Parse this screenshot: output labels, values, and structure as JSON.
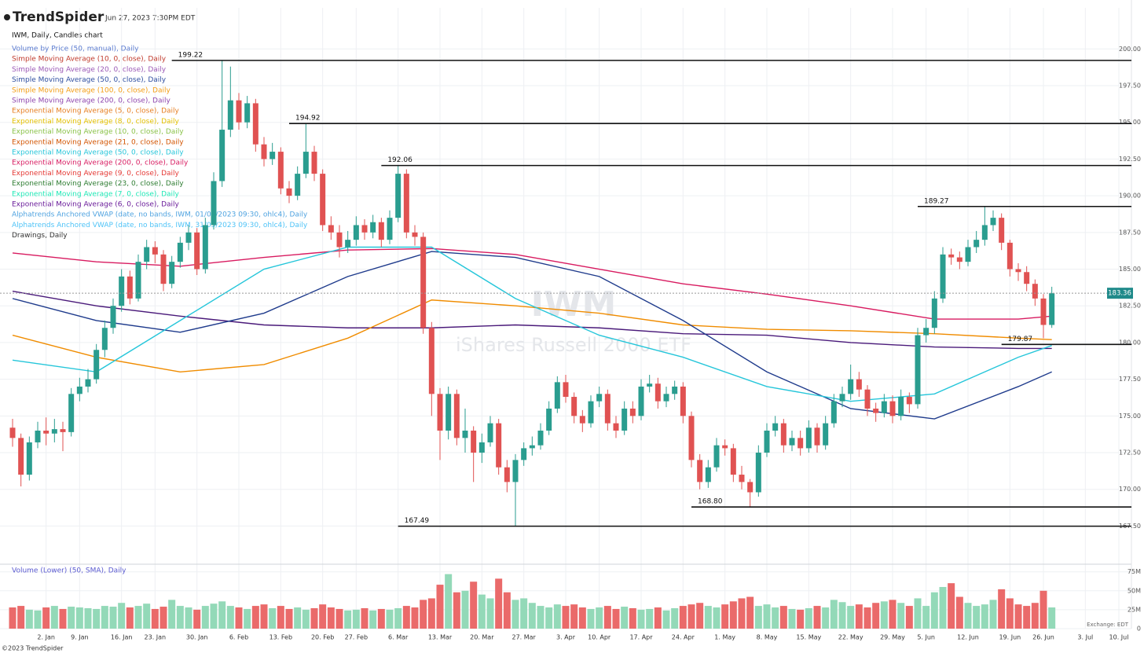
{
  "header": {
    "brand": "TrendSpider",
    "timestamp": "Jun 27, 2023 7:30PM EDT",
    "symbol_line": "IWM, Daily, Candles chart"
  },
  "legend": [
    {
      "label": "Volume by Price (50, manual), Daily",
      "color": "#5a7bd0"
    },
    {
      "label": "Simple Moving Average (10, 0, close), Daily",
      "color": "#c0392b"
    },
    {
      "label": "Simple Moving Average (20, 0, close), Daily",
      "color": "#9b59b6"
    },
    {
      "label": "Simple Moving Average (50, 0, close), Daily",
      "color": "#2e4ea0"
    },
    {
      "label": "Simple Moving Average (100, 0, close), Daily",
      "color": "#f39c12"
    },
    {
      "label": "Simple Moving Average (200, 0, close), Daily",
      "color": "#8e44ad"
    },
    {
      "label": "Exponential Moving Average (5, 0, close), Daily",
      "color": "#e67e22"
    },
    {
      "label": "Exponential Moving Average (8, 0, close), Daily",
      "color": "#e5c100"
    },
    {
      "label": "Exponential Moving Average (10, 0, close), Daily",
      "color": "#8bc34a"
    },
    {
      "label": "Exponential Moving Average (21, 0, close), Daily",
      "color": "#d35400"
    },
    {
      "label": "Exponential Moving Average (50, 0, close), Daily",
      "color": "#26c6da"
    },
    {
      "label": "Exponential Moving Average (200, 0, close), Daily",
      "color": "#d81b60"
    },
    {
      "label": "Exponential Moving Average (9, 0, close), Daily",
      "color": "#e53935"
    },
    {
      "label": "Exponential Moving Average (23, 0, close), Daily",
      "color": "#2e7d32"
    },
    {
      "label": "Exponential Moving Average (7, 0, close), Daily",
      "color": "#1de9b6"
    },
    {
      "label": "Exponential Moving Average (6, 0, close), Daily",
      "color": "#6a1b9a"
    },
    {
      "label": "Alphatrends Anchored VWAP (date, no bands, IWM, 01/06/2023 09:30, ohlc4), Daily",
      "color": "#4fa3e0"
    },
    {
      "label": "Alphatrends Anchored VWAP (date, no bands, IWM, 31/05/2023 09:30, ohlc4), Daily",
      "color": "#4fc3f7"
    },
    {
      "label": "Drawings, Daily",
      "color": "#333333"
    }
  ],
  "watermark": {
    "symbol": "IWM",
    "name": "iShares Russell 2000 ETF"
  },
  "footer": {
    "copyright": "©2023 TrendSpider",
    "exchange": "Exchange: EDT"
  },
  "chart_data": {
    "type": "candlestick",
    "xlim": [
      -1.5,
      133.5
    ],
    "xticks": [
      {
        "value": 4,
        "label": "2. Jan"
      },
      {
        "value": 8,
        "label": "9. Jan"
      },
      {
        "value": 13,
        "label": "16. Jan"
      },
      {
        "value": 17,
        "label": "23. Jan"
      },
      {
        "value": 22,
        "label": "30. Jan"
      },
      {
        "value": 27,
        "label": "6. Feb"
      },
      {
        "value": 32,
        "label": "13. Feb"
      },
      {
        "value": 37,
        "label": "20. Feb"
      },
      {
        "value": 41,
        "label": "27. Feb"
      },
      {
        "value": 46,
        "label": "6. Mar"
      },
      {
        "value": 51,
        "label": "13. Mar"
      },
      {
        "value": 56,
        "label": "20. Mar"
      },
      {
        "value": 61,
        "label": "27. Mar"
      },
      {
        "value": 66,
        "label": "3. Apr"
      },
      {
        "value": 70,
        "label": "10. Apr"
      },
      {
        "value": 75,
        "label": "17. Apr"
      },
      {
        "value": 80,
        "label": "24. Apr"
      },
      {
        "value": 85,
        "label": "1. May"
      },
      {
        "value": 90,
        "label": "8. May"
      },
      {
        "value": 95,
        "label": "15. May"
      },
      {
        "value": 100,
        "label": "22. May"
      },
      {
        "value": 105,
        "label": "29. May"
      },
      {
        "value": 109,
        "label": "5. Jun"
      },
      {
        "value": 114,
        "label": "12. Jun"
      },
      {
        "value": 119,
        "label": "19. Jun"
      },
      {
        "value": 123,
        "label": "26. Jun"
      },
      {
        "value": 128,
        "label": "3. Jul"
      },
      {
        "value": 132,
        "label": "10. Jul"
      }
    ],
    "ylim": [
      164.9,
      202.8
    ],
    "yticks": [
      {
        "value": 167.5,
        "label": "167.50"
      },
      {
        "value": 170,
        "label": "170.00"
      },
      {
        "value": 172.5,
        "label": "172.50"
      },
      {
        "value": 175,
        "label": "175.00"
      },
      {
        "value": 177.5,
        "label": "177.50"
      },
      {
        "value": 180,
        "label": "180.00"
      },
      {
        "value": 182.5,
        "label": "182.50"
      },
      {
        "value": 185,
        "label": "185.00"
      },
      {
        "value": 187.5,
        "label": "187.50"
      },
      {
        "value": 190,
        "label": "190.00"
      },
      {
        "value": 192.5,
        "label": "192.50"
      },
      {
        "value": 195,
        "label": "195.00"
      },
      {
        "value": 197.5,
        "label": "197.50"
      },
      {
        "value": 200,
        "label": "200.00"
      }
    ],
    "up_color": "#2a9d8f",
    "down_color": "#e05252",
    "grid": true,
    "candles": {
      "open": [
        174.2,
        173.5,
        171.0,
        173.2,
        174.0,
        173.8,
        174.1,
        173.9,
        176.5,
        177.0,
        177.5,
        179.5,
        181.0,
        182.5,
        184.5,
        183.0,
        185.5,
        186.5,
        186.0,
        184.0,
        185.5,
        186.8,
        187.5,
        185.0,
        188.0,
        191.0,
        194.5,
        196.5,
        195.0,
        196.3,
        193.5,
        192.5,
        193.0,
        190.5,
        190.0,
        191.5,
        193.0,
        191.5,
        188.0,
        187.5,
        186.5,
        187.0,
        188.0,
        187.5,
        188.2,
        187.0,
        188.5,
        191.5,
        187.5,
        187.2,
        181.0,
        176.5,
        174.0,
        176.5,
        173.5,
        174.0,
        172.5,
        173.2,
        174.5,
        171.5,
        170.5,
        172.0,
        172.8,
        173.0,
        174.0,
        175.5,
        177.3,
        176.3,
        175.0,
        174.5,
        176.0,
        176.5,
        174.5,
        174.0,
        175.5,
        175.0,
        177.0,
        177.2,
        176.0,
        176.5,
        177.0,
        175.0,
        172.0,
        170.5,
        171.5,
        173.0,
        172.8,
        171.0,
        170.5,
        169.8,
        172.5,
        174.0,
        174.5,
        173.0,
        173.5,
        172.8,
        174.2,
        173.0,
        174.5,
        176.0,
        176.5,
        177.5,
        176.8,
        175.5,
        175.2,
        176.0,
        175.0,
        176.3,
        175.8,
        180.5,
        181.0,
        183.0,
        186.0,
        185.8,
        185.5,
        186.5,
        187.0,
        188.0,
        188.5,
        186.8,
        185.0,
        184.8,
        184.0,
        183.0,
        181.2
      ],
      "high": [
        174.8,
        173.8,
        173.6,
        174.6,
        174.9,
        174.8,
        174.6,
        176.9,
        177.6,
        178.2,
        179.9,
        181.5,
        183.0,
        185.0,
        184.9,
        186.0,
        187.0,
        186.9,
        186.3,
        185.9,
        187.2,
        188.0,
        187.8,
        188.5,
        191.6,
        199.22,
        198.8,
        197.0,
        196.8,
        196.6,
        194.0,
        193.6,
        193.3,
        191.0,
        192.0,
        194.92,
        193.4,
        191.8,
        188.6,
        188.0,
        187.6,
        188.6,
        188.4,
        188.7,
        188.5,
        189.0,
        192.06,
        191.8,
        188.0,
        187.5,
        181.4,
        176.9,
        177.0,
        176.8,
        175.5,
        174.3,
        173.8,
        175.0,
        174.8,
        172.0,
        172.4,
        173.2,
        173.6,
        174.5,
        176.0,
        177.7,
        177.8,
        176.6,
        175.4,
        176.4,
        177.0,
        176.8,
        175.0,
        176.0,
        176.0,
        177.5,
        177.8,
        177.6,
        177.0,
        177.4,
        177.3,
        175.3,
        172.4,
        172.0,
        173.5,
        173.4,
        173.1,
        171.6,
        170.7,
        173.0,
        174.5,
        175.0,
        174.8,
        174.0,
        174.0,
        174.7,
        174.5,
        175.0,
        176.5,
        177.0,
        178.5,
        178.0,
        177.1,
        175.9,
        176.5,
        176.4,
        176.8,
        176.6,
        181.0,
        181.6,
        183.5,
        186.5,
        186.4,
        186.2,
        187.0,
        187.6,
        189.27,
        189.0,
        188.8,
        187.0,
        185.4,
        185.2,
        184.3,
        183.3,
        183.8
      ],
      "low": [
        172.9,
        170.2,
        170.6,
        172.8,
        173.0,
        173.2,
        172.6,
        173.6,
        176.0,
        176.6,
        177.2,
        179.0,
        180.6,
        182.1,
        182.6,
        182.8,
        185.0,
        185.4,
        183.5,
        183.7,
        185.1,
        186.3,
        184.6,
        184.7,
        187.7,
        190.6,
        194.0,
        194.5,
        194.6,
        193.0,
        192.0,
        192.1,
        190.1,
        189.5,
        189.7,
        191.2,
        191.0,
        187.6,
        187.0,
        185.8,
        186.1,
        186.6,
        187.0,
        187.1,
        186.5,
        186.7,
        188.2,
        187.1,
        186.6,
        180.6,
        175.0,
        172.0,
        173.4,
        173.0,
        172.5,
        170.5,
        171.8,
        172.9,
        171.0,
        169.8,
        167.49,
        171.6,
        172.3,
        172.7,
        173.7,
        175.2,
        175.9,
        174.5,
        173.9,
        174.2,
        175.6,
        174.0,
        173.5,
        173.7,
        174.5,
        174.7,
        176.6,
        175.5,
        175.6,
        176.1,
        174.5,
        171.5,
        170.0,
        170.1,
        171.2,
        172.3,
        170.5,
        170.0,
        168.8,
        169.5,
        172.2,
        173.6,
        172.5,
        172.6,
        172.3,
        172.5,
        172.5,
        172.7,
        174.2,
        175.6,
        176.1,
        176.3,
        175.0,
        174.6,
        174.9,
        174.5,
        174.7,
        175.2,
        175.5,
        180.0,
        180.6,
        182.7,
        185.3,
        185.0,
        185.2,
        186.1,
        186.6,
        187.6,
        186.3,
        184.5,
        184.2,
        183.5,
        182.5,
        180.3,
        181.0
      ],
      "close": [
        173.5,
        171.0,
        173.2,
        174.0,
        173.8,
        174.1,
        173.9,
        176.5,
        177.0,
        177.5,
        179.5,
        181.0,
        182.5,
        184.5,
        183.0,
        185.5,
        186.5,
        186.0,
        184.0,
        185.5,
        186.8,
        187.5,
        185.0,
        188.0,
        191.0,
        194.5,
        196.5,
        195.0,
        196.3,
        193.5,
        192.5,
        193.0,
        190.5,
        190.0,
        191.5,
        193.0,
        191.5,
        188.0,
        187.5,
        186.5,
        187.0,
        188.0,
        187.5,
        188.2,
        187.0,
        188.5,
        191.5,
        187.5,
        187.2,
        181.0,
        176.5,
        174.0,
        176.5,
        173.5,
        174.0,
        172.5,
        173.2,
        174.5,
        171.5,
        170.5,
        172.0,
        172.8,
        173.0,
        174.0,
        175.5,
        177.3,
        176.3,
        175.0,
        174.5,
        176.0,
        176.5,
        174.5,
        174.0,
        175.5,
        175.0,
        177.0,
        177.2,
        176.0,
        176.5,
        177.0,
        175.0,
        172.0,
        170.5,
        171.5,
        173.0,
        172.8,
        171.0,
        170.5,
        169.8,
        172.5,
        174.0,
        174.5,
        173.0,
        173.5,
        172.8,
        174.2,
        173.0,
        174.5,
        176.0,
        176.5,
        177.5,
        176.8,
        175.5,
        175.2,
        176.0,
        175.0,
        176.3,
        175.8,
        180.5,
        181.0,
        183.0,
        186.0,
        185.8,
        185.5,
        186.5,
        187.0,
        188.0,
        188.5,
        186.8,
        185.0,
        184.8,
        184.0,
        183.0,
        181.2,
        183.36
      ]
    },
    "last_price": 183.36,
    "series": [
      {
        "name": "Simple Moving Average (200, 0, close), Daily",
        "color": "#4a1a7a",
        "x": [
          0,
          10,
          20,
          30,
          40,
          50,
          60,
          70,
          80,
          90,
          100,
          110,
          120,
          124
        ],
        "values": [
          183.5,
          182.5,
          181.8,
          181.2,
          181.0,
          181.0,
          181.2,
          181.0,
          180.6,
          180.5,
          180.0,
          179.7,
          179.6,
          179.6
        ]
      },
      {
        "name": "Exponential Moving Average (200, 0, close), Daily",
        "color": "#d81b60",
        "x": [
          0,
          10,
          20,
          30,
          40,
          50,
          60,
          70,
          80,
          90,
          100,
          110,
          120,
          124
        ],
        "values": [
          186.1,
          185.5,
          185.2,
          185.8,
          186.3,
          186.4,
          186.0,
          185.0,
          184.0,
          183.3,
          182.5,
          181.6,
          181.6,
          181.8
        ]
      },
      {
        "name": "Simple Moving Average (100, 0, close), Daily",
        "color": "#f08c00",
        "x": [
          0,
          10,
          20,
          30,
          40,
          50,
          60,
          70,
          80,
          90,
          100,
          110,
          120,
          124
        ],
        "values": [
          180.5,
          179.0,
          178.0,
          178.5,
          180.3,
          182.9,
          182.5,
          182.0,
          181.2,
          180.9,
          180.8,
          180.6,
          180.3,
          180.2
        ]
      },
      {
        "name": "Simple Moving Average (50, 0, close), Daily",
        "color": "#1f3b8c",
        "x": [
          0,
          10,
          20,
          30,
          40,
          50,
          60,
          70,
          80,
          90,
          100,
          110,
          120,
          124
        ],
        "values": [
          183.0,
          181.5,
          180.7,
          182.0,
          184.5,
          186.2,
          185.8,
          184.5,
          181.5,
          178.0,
          175.5,
          174.8,
          177.0,
          178.0
        ]
      },
      {
        "name": "Exponential Moving Average (50, 0, close), Daily",
        "color": "#26c6da",
        "x": [
          0,
          10,
          20,
          30,
          40,
          50,
          60,
          70,
          80,
          90,
          100,
          110,
          120,
          124
        ],
        "values": [
          178.8,
          178.0,
          181.5,
          185.0,
          186.5,
          186.5,
          183.0,
          180.5,
          179.0,
          177.0,
          176.0,
          176.5,
          179.0,
          179.8
        ]
      }
    ],
    "levels": [
      {
        "value": 199.22,
        "label": "199.22",
        "from": 19
      },
      {
        "value": 194.92,
        "label": "194.92",
        "from": 33
      },
      {
        "value": 192.06,
        "label": "192.06",
        "from": 44
      },
      {
        "value": 189.27,
        "label": "189.27",
        "from": 108
      },
      {
        "value": 179.87,
        "label": "179.87",
        "from": 118
      },
      {
        "value": 168.8,
        "label": "168.80",
        "from": 81
      },
      {
        "value": 167.49,
        "label": "167.49",
        "from": 46
      }
    ],
    "volume": {
      "title": "Volume (Lower) (50, SMA), Daily",
      "ylim": [
        0,
        83
      ],
      "yticks": [
        {
          "value": 0,
          "label": "0"
        },
        {
          "value": 25,
          "label": "25M"
        },
        {
          "value": 50,
          "label": "50M"
        },
        {
          "value": 75,
          "label": "75M"
        }
      ],
      "up_color": "#93d9b8",
      "down_color": "#ea6a6a",
      "values": [
        28,
        30,
        25,
        24,
        28,
        30,
        26,
        29,
        28,
        27,
        26,
        30,
        29,
        34,
        28,
        30,
        33,
        26,
        29,
        38,
        30,
        28,
        25,
        30,
        33,
        36,
        30,
        28,
        26,
        30,
        32,
        27,
        30,
        26,
        28,
        25,
        27,
        32,
        28,
        26,
        24,
        25,
        27,
        24,
        26,
        25,
        27,
        30,
        28,
        38,
        40,
        58,
        72,
        48,
        50,
        62,
        45,
        40,
        66,
        48,
        38,
        40,
        34,
        30,
        28,
        32,
        30,
        32,
        28,
        26,
        28,
        30,
        26,
        29,
        27,
        25,
        26,
        28,
        24,
        27,
        30,
        32,
        34,
        30,
        28,
        32,
        36,
        40,
        42,
        30,
        32,
        28,
        30,
        26,
        25,
        27,
        30,
        28,
        38,
        35,
        30,
        32,
        28,
        34,
        36,
        38,
        34,
        30,
        40,
        30,
        48,
        55,
        60,
        42,
        34,
        30,
        32,
        38,
        52,
        40,
        32,
        30,
        34,
        50,
        28
      ]
    }
  }
}
